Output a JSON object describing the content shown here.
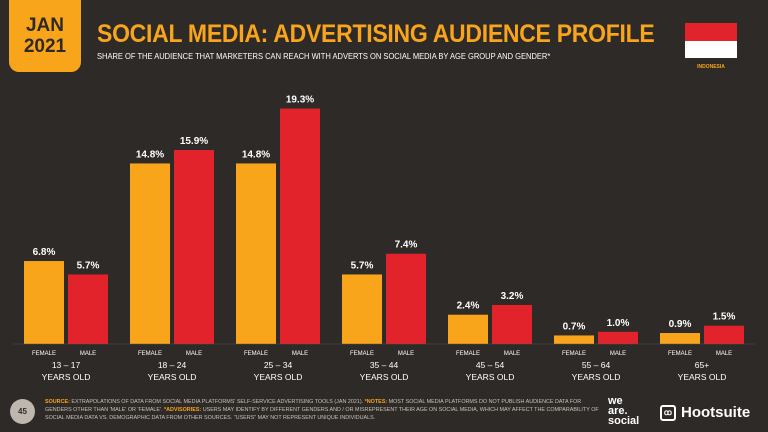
{
  "header": {
    "date_month": "JAN",
    "date_year": "2021",
    "title": "SOCIAL MEDIA: ADVERTISING AUDIENCE PROFILE",
    "subtitle": "SHARE OF THE AUDIENCE THAT MARKETERS CAN REACH WITH ADVERTS ON SOCIAL MEDIA BY AGE GROUP AND GENDER*",
    "country": "INDONESIA"
  },
  "chart_data": {
    "type": "bar",
    "categories": [
      "13 – 17",
      "18 – 24",
      "25 – 34",
      "35 – 44",
      "45 – 54",
      "55 – 64",
      "65+"
    ],
    "category_sublabel": "YEARS OLD",
    "series": [
      {
        "name": "FEMALE",
        "color": "#f9a51b",
        "values": [
          6.8,
          14.8,
          14.8,
          5.7,
          2.4,
          0.7,
          0.9
        ]
      },
      {
        "name": "MALE",
        "color": "#e3232b",
        "values": [
          5.7,
          15.9,
          19.3,
          7.4,
          3.2,
          1.0,
          1.5
        ]
      }
    ],
    "value_suffix": "%",
    "ylim": [
      0,
      20
    ],
    "grid": false
  },
  "footer": {
    "page": "45",
    "source_label": "SOURCE:",
    "source": "EXTRAPOLATIONS OF DATA FROM SOCIAL MEDIA PLATFORMS' SELF-SERVICE ADVERTISING TOOLS (JAN 2021).",
    "notes_label": "*NOTES:",
    "notes": "MOST SOCIAL MEDIA PLATFORMS DO NOT PUBLISH AUDIENCE DATA FOR GENDERS OTHER THAN 'MALE' OR 'FEMALE'.",
    "advisories_label": "*ADVISORIES:",
    "advisories": "USERS MAY IDENTIFY BY DIFFERENT GENDERS AND / OR MISREPRESENT THEIR AGE ON SOCIAL MEDIA, WHICH MAY AFFECT THE COMPARABILITY OF SOCIAL MEDIA DATA vs. DEMOGRAPHIC DATA FROM OTHER SOURCES. \"USERS\" MAY NOT REPRESENT UNIQUE INDIVIDUALS.",
    "brand1": "we are social",
    "brand2": "Hootsuite"
  }
}
